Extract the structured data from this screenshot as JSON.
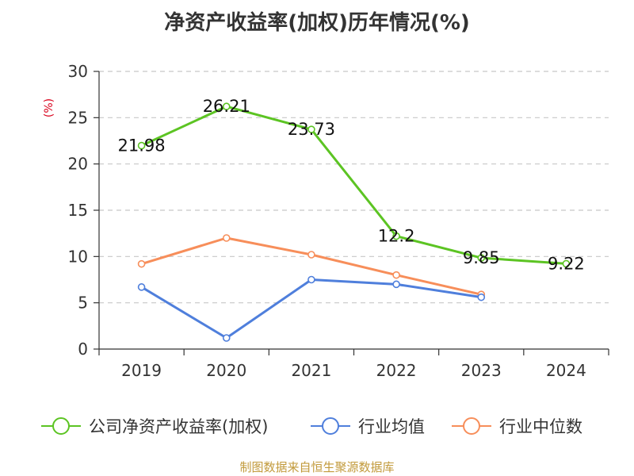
{
  "title": "净资产收益率(加权)历年情况(%)",
  "unit_label": "(%)",
  "source": "制图数据来自恒生聚源数据库",
  "colors": {
    "roe": "#5cc423",
    "industry_avg": "#4f7fdc",
    "industry_median": "#f78e5a",
    "axis": "#333333",
    "grid": "#c8c8c8"
  },
  "chart_data": {
    "type": "line",
    "categories": [
      "2019",
      "2020",
      "2021",
      "2022",
      "2023",
      "2024"
    ],
    "ylim": [
      0,
      30
    ],
    "yticks": [
      0,
      5,
      10,
      15,
      20,
      25,
      30
    ],
    "grid": true,
    "legend": "bottom",
    "series": [
      {
        "name": "公司净资产收益率(加权)",
        "values": [
          21.98,
          26.21,
          23.73,
          12.2,
          9.85,
          9.22
        ],
        "labels": [
          "21.98",
          "26.21",
          "23.73",
          "12.2",
          "9.85",
          "9.22"
        ]
      },
      {
        "name": "行业均值",
        "values": [
          6.7,
          1.2,
          7.5,
          7.0,
          5.6,
          null
        ]
      },
      {
        "name": "行业中位数",
        "values": [
          9.2,
          12.0,
          10.2,
          8.0,
          5.9,
          null
        ]
      }
    ]
  }
}
